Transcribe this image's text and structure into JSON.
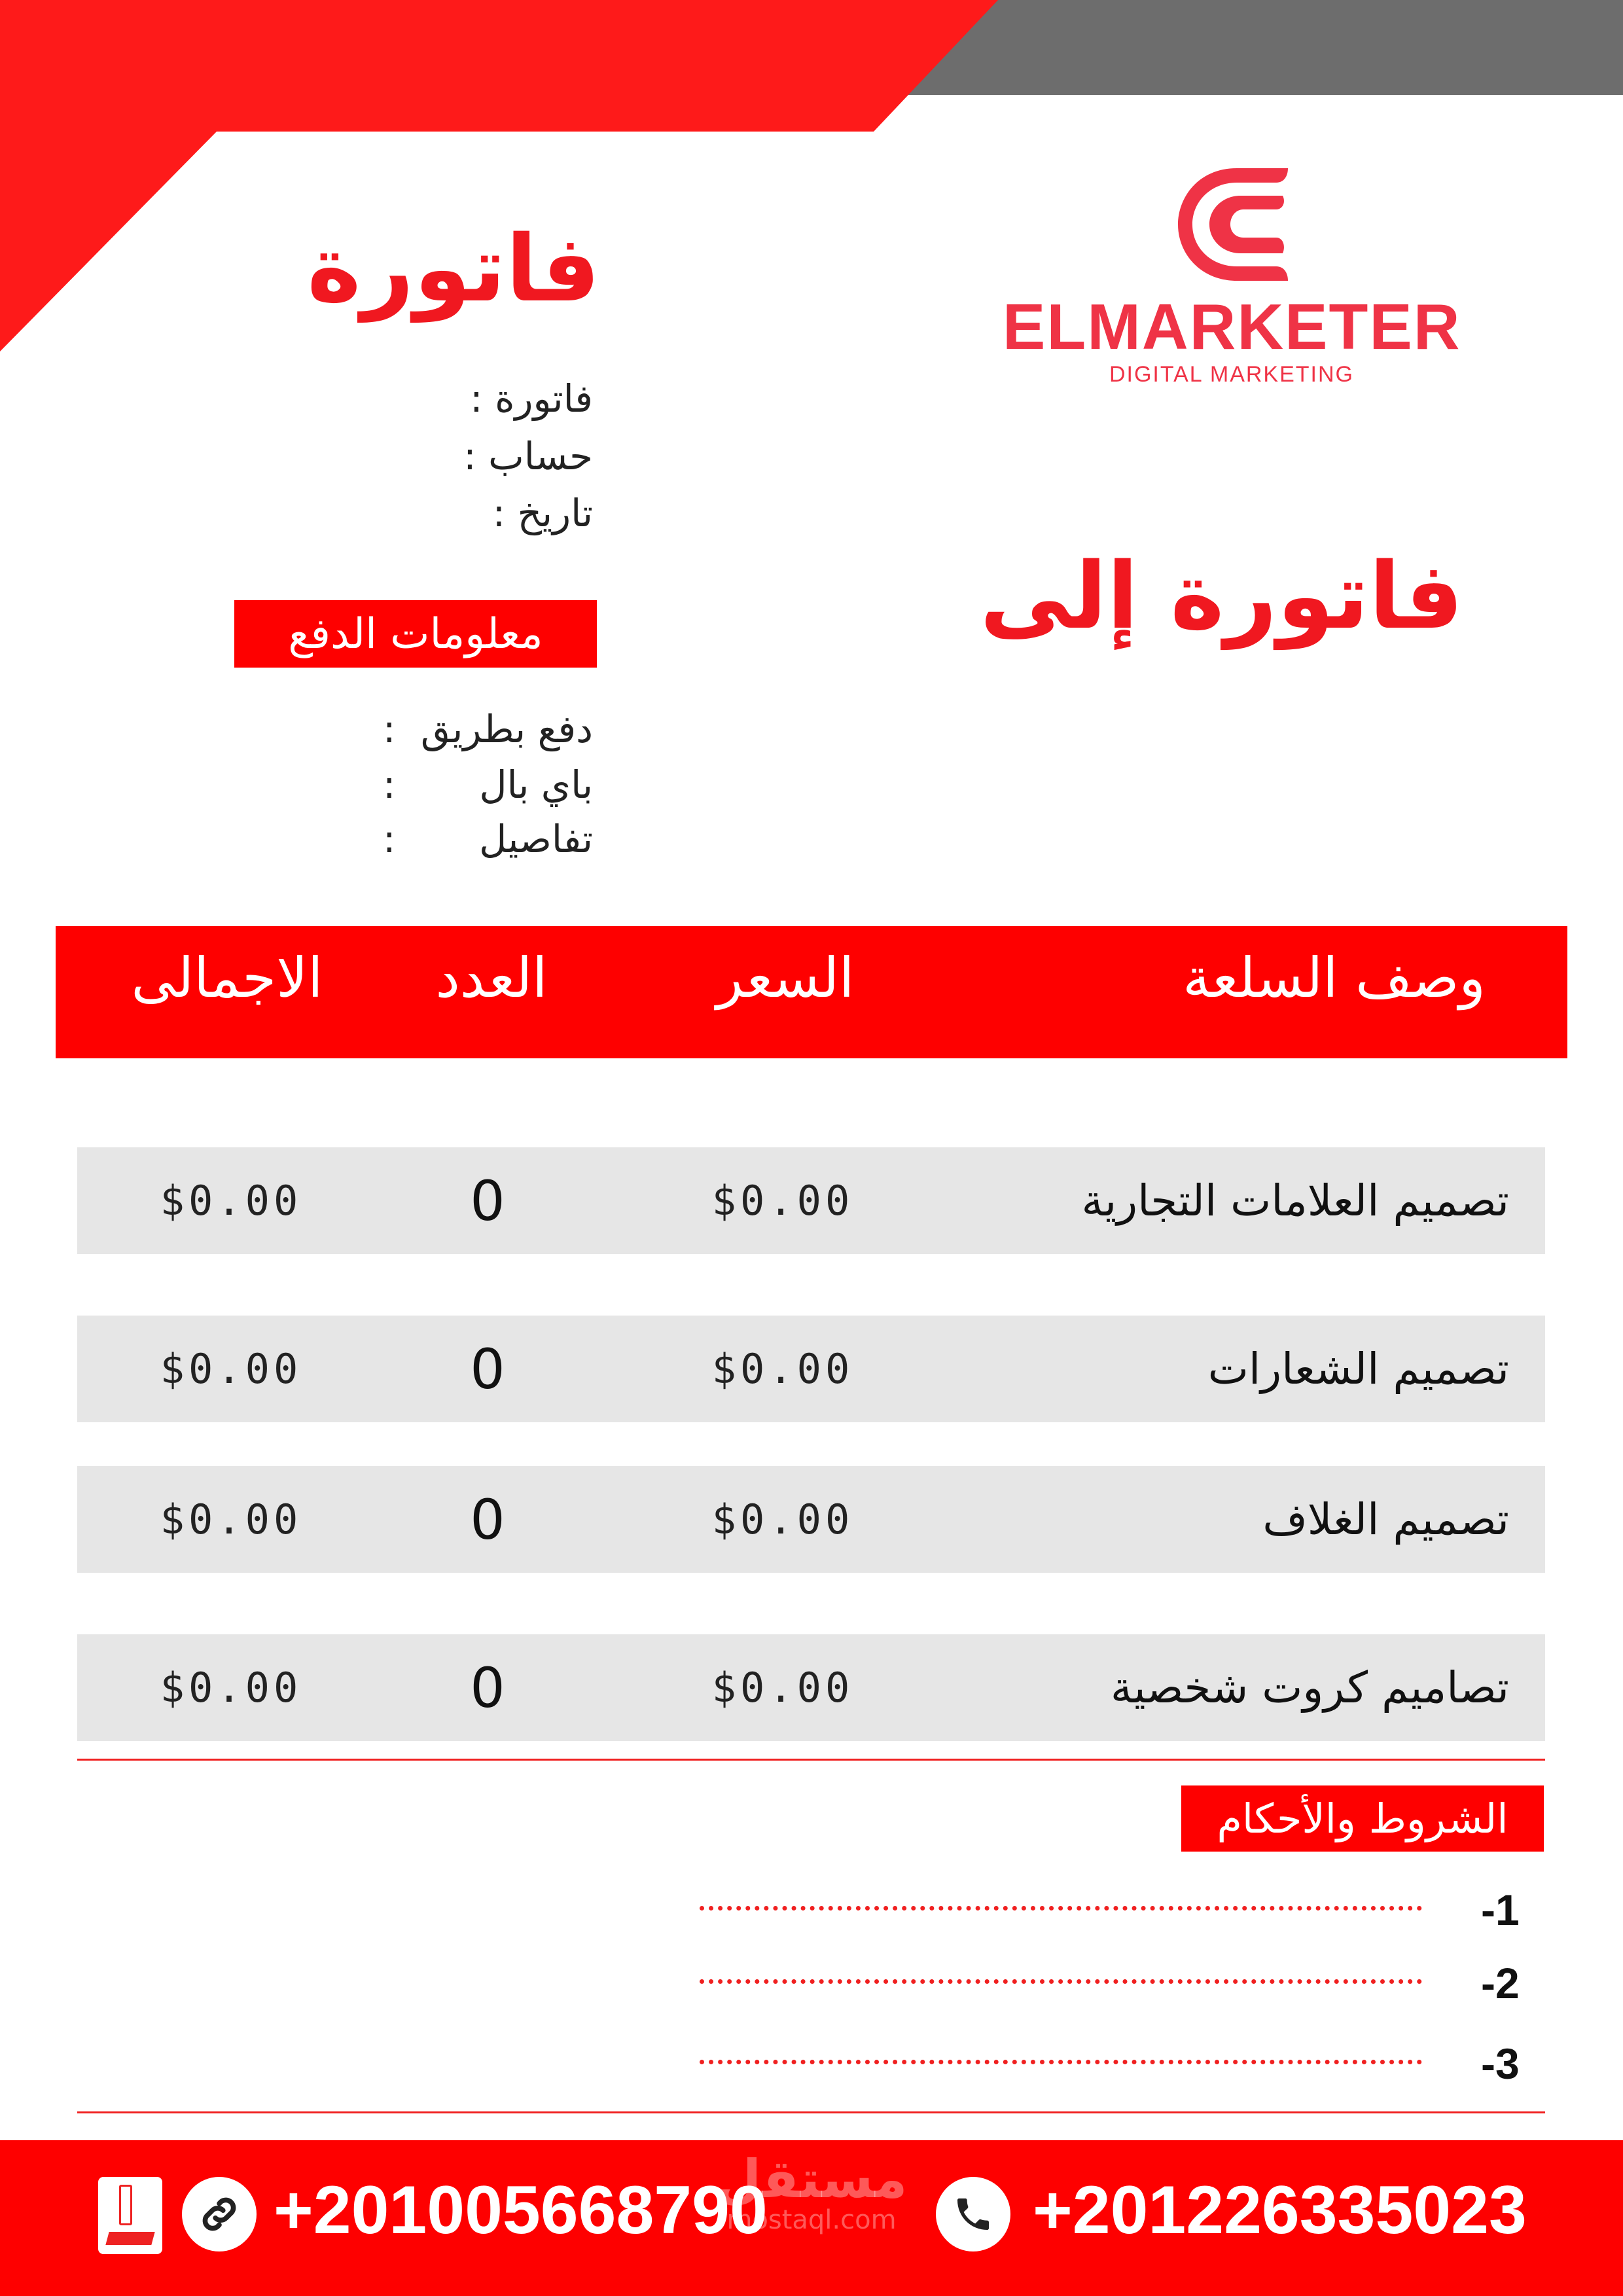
{
  "colors": {
    "accent": "#fe0000",
    "logo": "#ef3346",
    "band_gray": "#6d6d6d",
    "row_bg": "#e6e6e6"
  },
  "logo": {
    "brand": "ELMARKETER",
    "tagline": "DIGITAL MARKETING"
  },
  "header": {
    "title": "فاتورة",
    "invoice_to": "فاتورة إلى"
  },
  "invoice_info": [
    {
      "label": "فاتورة :"
    },
    {
      "label": "حساب :"
    },
    {
      "label": "تاريخ  :"
    }
  ],
  "payment": {
    "heading": "معلومات الدفع",
    "lines": [
      {
        "label": "دفع بطريق",
        "sep": ":"
      },
      {
        "label": "باي بال",
        "sep": ":"
      },
      {
        "label": "تفاصيل",
        "sep": ":"
      }
    ]
  },
  "table": {
    "headers": {
      "description": "وصف السلعة",
      "price": "السعر",
      "qty": "العدد",
      "total": "الاجمالى"
    },
    "rows": [
      {
        "description": "تصميم العلامات التجارية",
        "price": "$0.00",
        "qty": "0",
        "total": "$0.00"
      },
      {
        "description": "تصميم الشعارات",
        "price": "$0.00",
        "qty": "0",
        "total": "$0.00"
      },
      {
        "description": "تصميم الغلاف",
        "price": "$0.00",
        "qty": "0",
        "total": "$0.00"
      },
      {
        "description": "تصاميم كروت شخصية",
        "price": "$0.00",
        "qty": "0",
        "total": "$0.00"
      }
    ]
  },
  "terms": {
    "heading": "الشروط والأحكام",
    "items": [
      "-1",
      "-2",
      "-3"
    ]
  },
  "footer": {
    "phone_1": "+201226335023",
    "phone_2": "+201005668790",
    "icons": [
      "phone-icon",
      "link-icon",
      "app-icon"
    ]
  },
  "watermark": {
    "arabic": "مستقل",
    "latin": "mostaql.com"
  }
}
